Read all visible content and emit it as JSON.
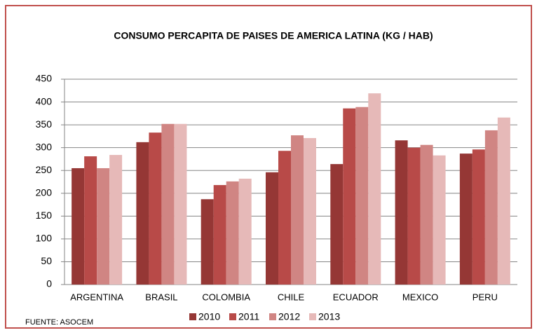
{
  "chart_data": {
    "type": "bar",
    "title": "CONSUMO PERCAPITA DE PAISES DE AMERICA LATINA (KG / HAB)",
    "note": "FUENTE: ASOCEM",
    "categories": [
      "ARGENTINA",
      "BRASIL",
      "COLOMBIA",
      "CHILE",
      "ECUADOR",
      "MEXICO",
      "PERU"
    ],
    "series": [
      {
        "name": "2010",
        "color": "#953735",
        "values": [
          255,
          312,
          187,
          246,
          264,
          316,
          287
        ]
      },
      {
        "name": "2011",
        "color": "#b84a48",
        "values": [
          281,
          333,
          218,
          293,
          386,
          300,
          296
        ]
      },
      {
        "name": "2012",
        "color": "#d08583",
        "values": [
          255,
          352,
          226,
          327,
          389,
          306,
          338
        ]
      },
      {
        "name": "2013",
        "color": "#e6b9b8",
        "values": [
          284,
          352,
          232,
          321,
          419,
          283,
          366
        ]
      }
    ],
    "ylim": [
      0,
      450
    ],
    "yticks": [
      0,
      50,
      100,
      150,
      200,
      250,
      300,
      350,
      400,
      450
    ],
    "grid": true,
    "legend": "bottom"
  }
}
